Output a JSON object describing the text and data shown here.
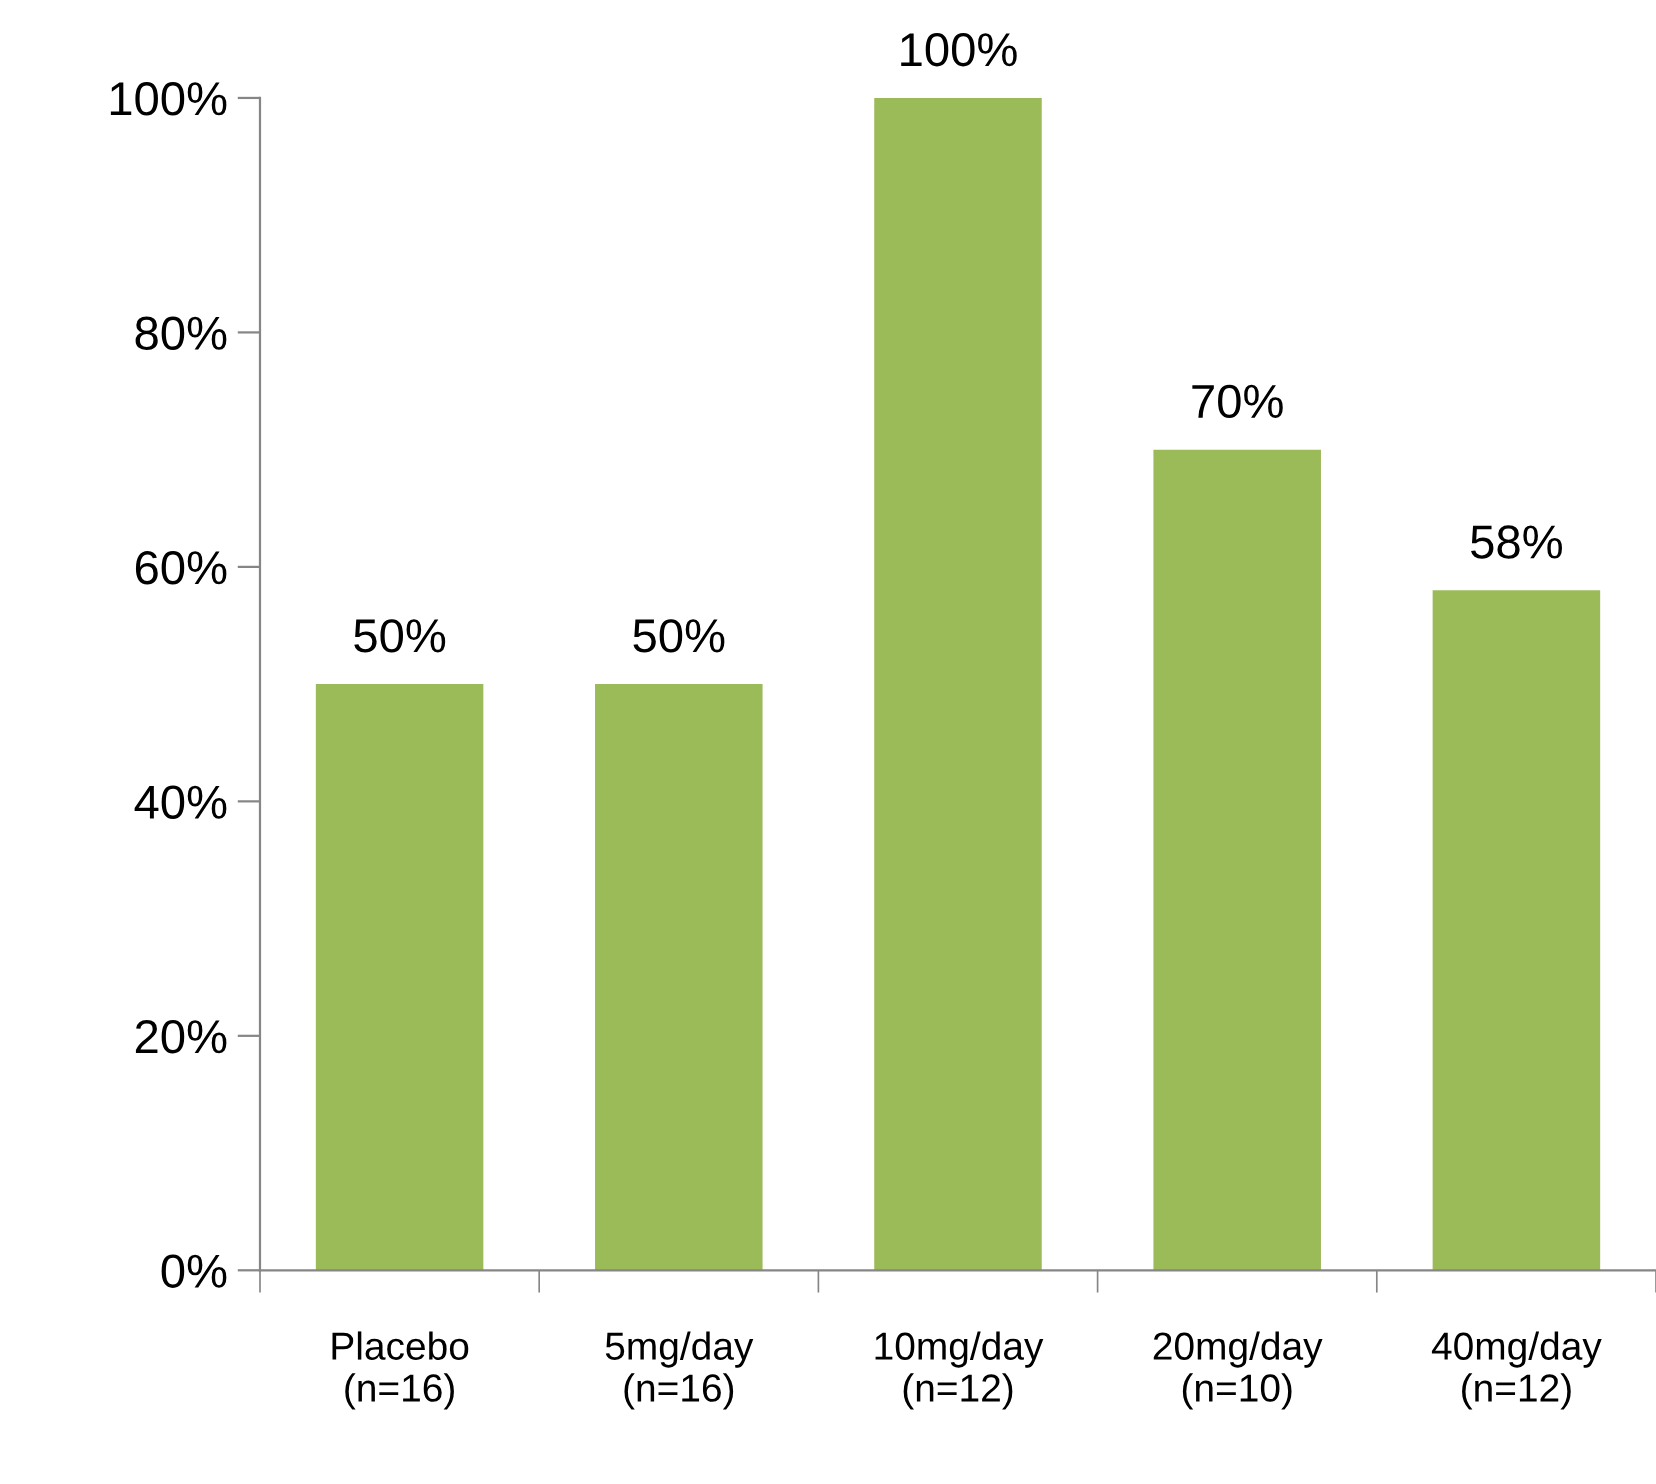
{
  "chart_data": {
    "type": "bar",
    "categories": [
      "Placebo\n(n=16)",
      "5mg/day\n(n=16)",
      "10mg/day\n(n=12)",
      "20mg/day\n(n=10)",
      "40mg/day\n(n=12)"
    ],
    "values": [
      50,
      50,
      100,
      70,
      58
    ],
    "value_labels": [
      "50%",
      "50%",
      "100%",
      "70%",
      "58%"
    ],
    "color": "#9bbb59",
    "ylim": [
      0,
      100
    ],
    "yticks": [
      {
        "value": 0,
        "label": "0%"
      },
      {
        "value": 20,
        "label": "20%"
      },
      {
        "value": 40,
        "label": "40%"
      },
      {
        "value": 60,
        "label": "60%"
      },
      {
        "value": 80,
        "label": "80%"
      },
      {
        "value": 100,
        "label": "100%"
      }
    ],
    "grid": false,
    "legend": false
  }
}
